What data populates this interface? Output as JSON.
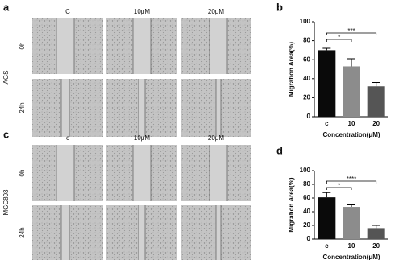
{
  "figure": [
    {
      "label": "a",
      "cell_line": "AGS",
      "columns": [
        "C",
        "10μM",
        "20μM"
      ],
      "rows": [
        "0h",
        "24h"
      ]
    },
    {
      "label": "c",
      "cell_line": "MGC803",
      "columns": [
        "c",
        "10μM",
        "20μM"
      ],
      "rows": [
        "0h",
        "24h"
      ]
    }
  ],
  "chart_data": [
    {
      "type": "bar",
      "label": "b",
      "categories": [
        "c",
        "10",
        "20"
      ],
      "values": [
        70,
        53,
        32
      ],
      "errors": [
        2,
        8,
        4
      ],
      "colors": [
        "#0a0a0a",
        "#8c8c8c",
        "#555555"
      ],
      "ylim": [
        0,
        100
      ],
      "yticks": [
        0,
        20,
        40,
        60,
        80,
        100
      ],
      "ylabel": "Migration Area(%)",
      "xlabel": "Concentration(μM)",
      "annotations": [
        "*",
        "***"
      ]
    },
    {
      "type": "bar",
      "label": "d",
      "categories": [
        "c",
        "10",
        "20"
      ],
      "values": [
        61,
        47,
        16
      ],
      "errors": [
        7,
        3,
        4
      ],
      "colors": [
        "#0a0a0a",
        "#8c8c8c",
        "#555555"
      ],
      "ylim": [
        0,
        100
      ],
      "yticks": [
        0,
        20,
        40,
        60,
        80,
        100
      ],
      "ylabel": "Migration Area(%)",
      "xlabel": "Concentration(μM)",
      "annotations": [
        "*",
        "****"
      ]
    }
  ]
}
